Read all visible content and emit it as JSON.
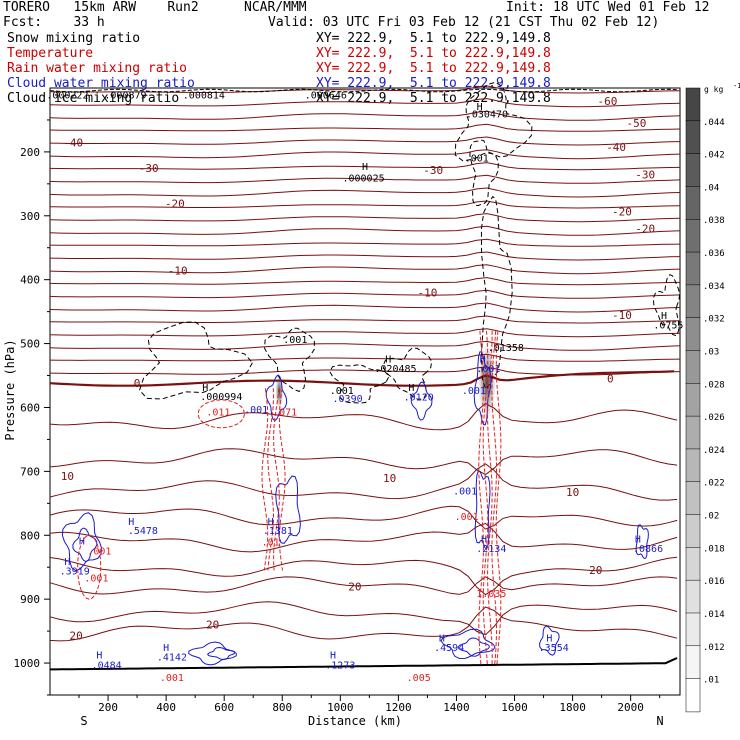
{
  "header": {
    "model": "TORERO   15km ARW    Run2",
    "org": "NCAR/MMM",
    "init": "Init: 18 UTC Wed 01 Feb 12",
    "fcst": "Fcst:    33 h",
    "valid": "Valid: 03 UTC Fri 03 Feb 12 (21 CST Thu 02 Feb 12)",
    "fields": [
      {
        "name": "Snow mixing ratio",
        "color": "#000000",
        "xy": "XY= 222.9,  5.1 to 222.9,149.8"
      },
      {
        "name": "Temperature",
        "color": "#cc0000",
        "xy": "XY= 222.9,  5.1 to 222.9,149.8"
      },
      {
        "name": "Rain water mixing ratio",
        "color": "#cc0000",
        "xy": "XY= 222.9,  5.1 to 222.9,149.8"
      },
      {
        "name": "Cloud water mixing ratio",
        "color": "#1a1acc",
        "xy": "XY= 222.9,  5.1 to 222.9,149.8"
      },
      {
        "name": "Cloud ice mixing ratio",
        "color": "#000000",
        "xy": "XY= 222.9,  5.1 to 222.9,149.8"
      }
    ]
  },
  "colors": {
    "temperature": "#7a1010",
    "freezing": "#7a1010",
    "rain": "#e02020",
    "cloud_water": "#1a1acc",
    "snow": "#000000",
    "ground": "#000000"
  },
  "chart_data": {
    "type": "contour",
    "xlabel": "Distance (km)",
    "ylabel": "Pressure (hPa)",
    "x_end_labels": {
      "left": "S",
      "right": "N"
    },
    "xlim": [
      0,
      2170
    ],
    "ylim": [
      1050,
      100
    ],
    "xticks": [
      200,
      400,
      600,
      800,
      1000,
      1200,
      1400,
      1600,
      1800,
      2000
    ],
    "yticks": [
      200,
      300,
      400,
      500,
      600,
      700,
      800,
      900,
      1000
    ],
    "colorbar": {
      "unit": "g kg",
      "unit_exp": "-1",
      "labels": [
        ".044",
        ".042",
        ".04",
        ".038",
        ".036",
        ".034",
        ".032",
        ".03",
        ".028",
        ".026",
        ".024",
        ".022",
        ".02",
        ".018",
        ".016",
        ".014",
        ".012",
        ".01"
      ]
    },
    "temperature_labels": [
      {
        "text": "-60",
        "x": 1920,
        "p": 120
      },
      {
        "text": "-50",
        "x": 2020,
        "p": 155
      },
      {
        "text": "-40",
        "x": 80,
        "p": 185
      },
      {
        "text": "-40",
        "x": 1950,
        "p": 192
      },
      {
        "text": "-30",
        "x": 340,
        "p": 225
      },
      {
        "text": "-30",
        "x": 1320,
        "p": 228
      },
      {
        "text": "-30",
        "x": 2050,
        "p": 235
      },
      {
        "text": "-20",
        "x": 430,
        "p": 281
      },
      {
        "text": "-20",
        "x": 1970,
        "p": 293
      },
      {
        "text": "-20",
        "x": 2050,
        "p": 320
      },
      {
        "text": "-10",
        "x": 440,
        "p": 386
      },
      {
        "text": "-10",
        "x": 1300,
        "p": 420
      },
      {
        "text": "-10",
        "x": 1970,
        "p": 455
      },
      {
        "text": "0",
        "x": 300,
        "p": 562
      },
      {
        "text": "0",
        "x": 1930,
        "p": 555
      },
      {
        "text": "10",
        "x": 60,
        "p": 707
      },
      {
        "text": "10",
        "x": 1170,
        "p": 710
      },
      {
        "text": "10",
        "x": 1800,
        "p": 732
      },
      {
        "text": "20",
        "x": 1050,
        "p": 880
      },
      {
        "text": "20",
        "x": 1880,
        "p": 854
      },
      {
        "text": "20",
        "x": 90,
        "p": 957
      },
      {
        "text": "20",
        "x": 560,
        "p": 940
      }
    ],
    "value_labels": [
      {
        "text": "H",
        "x": 1480,
        "p": 128,
        "c": "snow"
      },
      {
        "text": ".030470",
        "x": 1505,
        "p": 140,
        "c": "snow"
      },
      {
        "text": ".001",
        "x": 1470,
        "p": 209,
        "c": "snow"
      },
      {
        "text": "H",
        "x": 1085,
        "p": 222,
        "c": "snow"
      },
      {
        "text": ".000025",
        "x": 1080,
        "p": 240,
        "c": "snow"
      },
      {
        "text": "H",
        "x": 2115,
        "p": 455,
        "c": "snow"
      },
      {
        "text": ".0755",
        "x": 2130,
        "p": 470,
        "c": "snow"
      },
      {
        "text": ".001",
        "x": 845,
        "p": 493,
        "c": "snow"
      },
      {
        "text": ".01358",
        "x": 1570,
        "p": 505,
        "c": "snow"
      },
      {
        "text": "H",
        "x": 1165,
        "p": 523,
        "c": "snow"
      },
      {
        "text": ".020485",
        "x": 1190,
        "p": 538,
        "c": "snow"
      },
      {
        "text": "H",
        "x": 535,
        "p": 568,
        "c": "snow"
      },
      {
        "text": ".000994",
        "x": 590,
        "p": 582,
        "c": "snow"
      },
      {
        "text": "H",
        "x": 1245,
        "p": 568,
        "c": "snow"
      },
      {
        "text": ".001",
        "x": 1005,
        "p": 573,
        "c": "snow"
      },
      {
        "text": ".0390",
        "x": 1025,
        "p": 585,
        "c": "cloud_water"
      },
      {
        "text": ".0120",
        "x": 1270,
        "p": 583,
        "c": "cloud_water"
      },
      {
        "text": "H",
        "x": 1490,
        "p": 523,
        "c": "cloud_water"
      },
      {
        "text": ".001",
        "x": 1510,
        "p": 538,
        "c": "cloud_water"
      },
      {
        "text": ".001",
        "x": 1460,
        "p": 573,
        "c": "cloud_water"
      },
      {
        "text": ".001",
        "x": 710,
        "p": 602,
        "c": "cloud_water"
      },
      {
        "text": ".011",
        "x": 580,
        "p": 606,
        "c": "rain"
      },
      {
        "text": ".071",
        "x": 810,
        "p": 606,
        "c": "rain"
      },
      {
        "text": ".001",
        "x": 1430,
        "p": 730,
        "c": "cloud_water"
      },
      {
        "text": ".001",
        "x": 1435,
        "p": 770,
        "c": "rain"
      },
      {
        "text": "H",
        "x": 280,
        "p": 778,
        "c": "cloud_water"
      },
      {
        "text": ".5478",
        "x": 320,
        "p": 792,
        "c": "cloud_water"
      },
      {
        "text": "H",
        "x": 760,
        "p": 778,
        "c": "cloud_water"
      },
      {
        "text": ".1381",
        "x": 785,
        "p": 792,
        "c": "cloud_water"
      },
      {
        "text": ".01",
        "x": 760,
        "p": 810,
        "c": "rain"
      },
      {
        "text": "H",
        "x": 110,
        "p": 808,
        "c": "cloud_water"
      },
      {
        "text": ".001",
        "x": 170,
        "p": 824,
        "c": "rain"
      },
      {
        "text": "H",
        "x": 1495,
        "p": 805,
        "c": "cloud_water"
      },
      {
        "text": ".2134",
        "x": 1520,
        "p": 820,
        "c": "cloud_water"
      },
      {
        "text": "H",
        "x": 2025,
        "p": 805,
        "c": "cloud_water"
      },
      {
        "text": ".0866",
        "x": 2060,
        "p": 820,
        "c": "cloud_water"
      },
      {
        "text": "H",
        "x": 60,
        "p": 840,
        "c": "cloud_water"
      },
      {
        "text": ".3919",
        "x": 85,
        "p": 855,
        "c": "cloud_water"
      },
      {
        "text": ".001",
        "x": 160,
        "p": 866,
        "c": "rain"
      },
      {
        "text": "1.035",
        "x": 1520,
        "p": 890,
        "c": "rain"
      },
      {
        "text": "H",
        "x": 1350,
        "p": 960,
        "c": "cloud_water"
      },
      {
        "text": ".4594",
        "x": 1375,
        "p": 975,
        "c": "cloud_water"
      },
      {
        "text": "H",
        "x": 1720,
        "p": 960,
        "c": "cloud_water"
      },
      {
        "text": ".3554",
        "x": 1735,
        "p": 975,
        "c": "cloud_water"
      },
      {
        "text": "H",
        "x": 400,
        "p": 975,
        "c": "cloud_water"
      },
      {
        "text": ".4142",
        "x": 420,
        "p": 990,
        "c": "cloud_water"
      },
      {
        "text": "H",
        "x": 170,
        "p": 987,
        "c": "cloud_water"
      },
      {
        "text": ".0484",
        "x": 195,
        "p": 1002,
        "c": "cloud_water"
      },
      {
        "text": "H",
        "x": 975,
        "p": 987,
        "c": "cloud_water"
      },
      {
        "text": ".1273",
        "x": 1000,
        "p": 1002,
        "c": "cloud_water"
      },
      {
        "text": ".001",
        "x": 420,
        "p": 1022,
        "c": "rain"
      },
      {
        "text": ".005",
        "x": 1270,
        "p": 1022,
        "c": "rain"
      },
      {
        "text": ".000879",
        "x": 260,
        "p": 110,
        "c": "snow"
      },
      {
        "text": ".000814",
        "x": 530,
        "p": 110,
        "c": "snow"
      },
      {
        "text": ".000646",
        "x": 950,
        "p": 110,
        "c": "snow"
      },
      {
        "text": ".000222",
        "x": 60,
        "p": 110,
        "c": "snow"
      }
    ]
  }
}
